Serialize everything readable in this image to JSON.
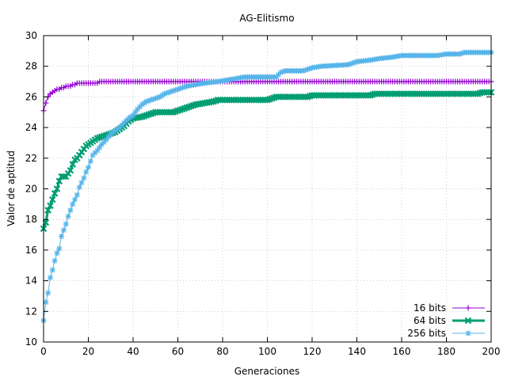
{
  "chart_data": {
    "type": "line",
    "title": "AG-Elitismo",
    "xlabel": "Generaciones",
    "ylabel": "Valor de aptitud",
    "xlim": [
      0,
      200
    ],
    "ylim": [
      10,
      30
    ],
    "xticks": [
      0,
      20,
      40,
      60,
      80,
      100,
      120,
      140,
      160,
      180,
      200
    ],
    "yticks": [
      10,
      12,
      14,
      16,
      18,
      20,
      22,
      24,
      26,
      28,
      30
    ],
    "grid": true,
    "legend_position": "bottom-right",
    "series": [
      {
        "name": "16 bits",
        "color": "#9400d3",
        "marker": "plus",
        "line_width": 1,
        "points": [
          [
            0,
            25.1
          ],
          [
            1,
            25.6
          ],
          [
            2,
            26.0
          ],
          [
            3,
            26.2
          ],
          [
            4,
            26.3
          ],
          [
            5,
            26.4
          ],
          [
            6,
            26.5
          ],
          [
            7,
            26.5
          ],
          [
            8,
            26.6
          ],
          [
            9,
            26.6
          ],
          [
            10,
            26.7
          ],
          [
            11,
            26.7
          ],
          [
            12,
            26.7
          ],
          [
            13,
            26.8
          ],
          [
            14,
            26.8
          ],
          [
            15,
            26.9
          ],
          [
            16,
            26.9
          ],
          [
            18,
            26.9
          ],
          [
            20,
            26.9
          ],
          [
            22,
            26.9
          ],
          [
            24,
            26.9
          ],
          [
            25,
            27.0
          ],
          [
            30,
            27.0
          ],
          [
            40,
            27.0
          ],
          [
            60,
            27.0
          ],
          [
            80,
            27.0
          ],
          [
            100,
            27.0
          ],
          [
            120,
            27.0
          ],
          [
            140,
            27.0
          ],
          [
            160,
            27.0
          ],
          [
            180,
            27.0
          ],
          [
            200,
            27.0
          ]
        ]
      },
      {
        "name": "64 bits",
        "color": "#009e73",
        "marker": "cross",
        "line_width": 3,
        "points": [
          [
            0,
            17.4
          ],
          [
            1,
            17.8
          ],
          [
            2,
            18.6
          ],
          [
            3,
            18.9
          ],
          [
            4,
            19.3
          ],
          [
            5,
            19.7
          ],
          [
            6,
            20.0
          ],
          [
            7,
            20.5
          ],
          [
            8,
            20.8
          ],
          [
            10,
            20.8
          ],
          [
            11,
            21.0
          ],
          [
            12,
            21.2
          ],
          [
            13,
            21.6
          ],
          [
            14,
            21.9
          ],
          [
            15,
            22.0
          ],
          [
            16,
            22.2
          ],
          [
            17,
            22.4
          ],
          [
            18,
            22.6
          ],
          [
            19,
            22.8
          ],
          [
            20,
            22.9
          ],
          [
            22,
            23.1
          ],
          [
            24,
            23.3
          ],
          [
            26,
            23.4
          ],
          [
            28,
            23.5
          ],
          [
            30,
            23.6
          ],
          [
            32,
            23.7
          ],
          [
            34,
            23.9
          ],
          [
            36,
            24.1
          ],
          [
            38,
            24.4
          ],
          [
            40,
            24.6
          ],
          [
            44,
            24.7
          ],
          [
            46,
            24.8
          ],
          [
            48,
            24.9
          ],
          [
            50,
            25.0
          ],
          [
            58,
            25.0
          ],
          [
            60,
            25.1
          ],
          [
            62,
            25.2
          ],
          [
            64,
            25.3
          ],
          [
            66,
            25.4
          ],
          [
            68,
            25.5
          ],
          [
            72,
            25.6
          ],
          [
            76,
            25.7
          ],
          [
            78,
            25.8
          ],
          [
            100,
            25.8
          ],
          [
            102,
            25.9
          ],
          [
            104,
            26.0
          ],
          [
            118,
            26.0
          ],
          [
            120,
            26.1
          ],
          [
            146,
            26.1
          ],
          [
            148,
            26.2
          ],
          [
            194,
            26.2
          ],
          [
            196,
            26.3
          ],
          [
            200,
            26.3
          ]
        ]
      },
      {
        "name": "256 bits",
        "color": "#56b4e9",
        "marker": "star",
        "line_width": 1,
        "points": [
          [
            0,
            11.4
          ],
          [
            1,
            12.6
          ],
          [
            2,
            13.2
          ],
          [
            3,
            14.2
          ],
          [
            4,
            14.7
          ],
          [
            5,
            15.3
          ],
          [
            6,
            15.8
          ],
          [
            7,
            16.1
          ],
          [
            8,
            16.9
          ],
          [
            9,
            17.3
          ],
          [
            10,
            17.7
          ],
          [
            11,
            18.2
          ],
          [
            12,
            18.6
          ],
          [
            13,
            19.0
          ],
          [
            14,
            19.3
          ],
          [
            15,
            19.6
          ],
          [
            16,
            20.1
          ],
          [
            17,
            20.4
          ],
          [
            18,
            20.7
          ],
          [
            19,
            21.1
          ],
          [
            20,
            21.4
          ],
          [
            21,
            21.8
          ],
          [
            22,
            22.2
          ],
          [
            24,
            22.5
          ],
          [
            26,
            22.9
          ],
          [
            28,
            23.2
          ],
          [
            30,
            23.6
          ],
          [
            32,
            23.8
          ],
          [
            34,
            24.0
          ],
          [
            36,
            24.3
          ],
          [
            38,
            24.6
          ],
          [
            40,
            24.8
          ],
          [
            42,
            25.2
          ],
          [
            44,
            25.5
          ],
          [
            46,
            25.7
          ],
          [
            48,
            25.8
          ],
          [
            50,
            25.9
          ],
          [
            52,
            26.0
          ],
          [
            54,
            26.2
          ],
          [
            56,
            26.3
          ],
          [
            58,
            26.4
          ],
          [
            60,
            26.5
          ],
          [
            62,
            26.6
          ],
          [
            64,
            26.7
          ],
          [
            68,
            26.8
          ],
          [
            72,
            26.9
          ],
          [
            78,
            27.0
          ],
          [
            82,
            27.1
          ],
          [
            86,
            27.2
          ],
          [
            90,
            27.3
          ],
          [
            104,
            27.3
          ],
          [
            106,
            27.6
          ],
          [
            108,
            27.7
          ],
          [
            116,
            27.7
          ],
          [
            118,
            27.8
          ],
          [
            120,
            27.9
          ],
          [
            124,
            28.0
          ],
          [
            136,
            28.1
          ],
          [
            140,
            28.3
          ],
          [
            146,
            28.4
          ],
          [
            150,
            28.5
          ],
          [
            156,
            28.6
          ],
          [
            160,
            28.7
          ],
          [
            176,
            28.7
          ],
          [
            180,
            28.8
          ],
          [
            186,
            28.8
          ],
          [
            188,
            28.9
          ],
          [
            200,
            28.9
          ]
        ]
      }
    ]
  }
}
